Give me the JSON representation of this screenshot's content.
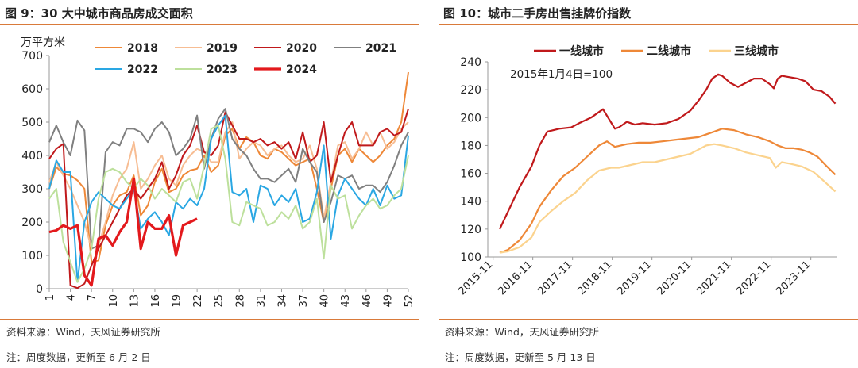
{
  "left_panel": {
    "title": "图 9：30 大中城市商品房成交面积",
    "source": "资料来源：Wind，天风证券研究所",
    "note": "注：周度数据，更新至 6 月 2 日"
  },
  "right_panel": {
    "title": "图 10：城市二手房出售挂牌价指数",
    "source": "资料来源：Wind，天风证券研究所",
    "note": "注：周度数据，更新至 5 月 13 日"
  },
  "chart_data": [
    {
      "type": "line",
      "ylabel": "万平方米",
      "ylim": [
        0,
        700
      ],
      "yticks": [
        0,
        100,
        200,
        300,
        400,
        500,
        600,
        700
      ],
      "xlim": [
        1,
        52
      ],
      "xticks": [
        1,
        4,
        7,
        10,
        13,
        16,
        19,
        22,
        25,
        28,
        31,
        34,
        37,
        40,
        43,
        46,
        49,
        52
      ],
      "legend_position": "top",
      "series": [
        {
          "name": "2018",
          "color": "#ee8838",
          "width": 2,
          "x": [
            1,
            2,
            3,
            4,
            5,
            6,
            7,
            8,
            9,
            10,
            11,
            12,
            13,
            14,
            15,
            16,
            17,
            18,
            19,
            20,
            21,
            22,
            23,
            24,
            25,
            26,
            27,
            28,
            29,
            30,
            31,
            32,
            33,
            34,
            35,
            36,
            37,
            38,
            39,
            40,
            41,
            42,
            43,
            44,
            45,
            46,
            47,
            48,
            49,
            50,
            51,
            52
          ],
          "values": [
            300,
            365,
            345,
            340,
            325,
            300,
            80,
            85,
            190,
            250,
            280,
            290,
            340,
            220,
            250,
            320,
            360,
            290,
            300,
            340,
            355,
            360,
            400,
            350,
            370,
            460,
            480,
            420,
            455,
            440,
            400,
            390,
            420,
            410,
            390,
            370,
            380,
            390,
            300,
            200,
            300,
            400,
            420,
            380,
            420,
            400,
            380,
            400,
            430,
            450,
            500,
            650
          ]
        },
        {
          "name": "2019",
          "color": "#f7bd93",
          "width": 2,
          "x": [
            1,
            2,
            3,
            4,
            5,
            6,
            7,
            8,
            9,
            10,
            11,
            12,
            13,
            14,
            15,
            16,
            17,
            18,
            19,
            20,
            21,
            22,
            23,
            24,
            25,
            26,
            27,
            28,
            29,
            30,
            31,
            32,
            33,
            34,
            35,
            36,
            37,
            38,
            39,
            40,
            41,
            42,
            43,
            44,
            45,
            46,
            47,
            48,
            49,
            50,
            51,
            52
          ],
          "values": [
            320,
            380,
            340,
            300,
            250,
            200,
            120,
            130,
            200,
            280,
            330,
            360,
            440,
            300,
            330,
            370,
            400,
            330,
            310,
            370,
            400,
            420,
            410,
            380,
            380,
            470,
            500,
            390,
            420,
            440,
            430,
            400,
            420,
            430,
            400,
            380,
            390,
            430,
            360,
            210,
            320,
            430,
            440,
            390,
            420,
            470,
            430,
            470,
            420,
            440,
            480,
            500
          ]
        },
        {
          "name": "2020",
          "color": "#c0191b",
          "width": 2,
          "x": [
            1,
            2,
            3,
            4,
            5,
            6,
            7,
            8,
            9,
            10,
            11,
            12,
            13,
            14,
            15,
            16,
            17,
            18,
            19,
            20,
            21,
            22,
            23,
            24,
            25,
            26,
            27,
            28,
            29,
            30,
            31,
            32,
            33,
            34,
            35,
            36,
            37,
            38,
            39,
            40,
            41,
            42,
            43,
            44,
            45,
            46,
            47,
            48,
            49,
            50,
            51,
            52
          ],
          "values": [
            390,
            420,
            435,
            10,
            2,
            15,
            70,
            120,
            160,
            200,
            240,
            280,
            300,
            270,
            300,
            330,
            380,
            300,
            340,
            400,
            430,
            490,
            410,
            400,
            430,
            530,
            490,
            450,
            450,
            440,
            450,
            430,
            440,
            420,
            440,
            390,
            470,
            380,
            400,
            500,
            320,
            400,
            470,
            500,
            430,
            430,
            430,
            470,
            480,
            460,
            470,
            540
          ]
        },
        {
          "name": "2021",
          "color": "#808080",
          "width": 2,
          "x": [
            1,
            2,
            3,
            4,
            5,
            6,
            7,
            8,
            9,
            10,
            11,
            12,
            13,
            14,
            15,
            16,
            17,
            18,
            19,
            20,
            21,
            22,
            23,
            24,
            25,
            26,
            27,
            28,
            29,
            30,
            31,
            32,
            33,
            34,
            35,
            36,
            37,
            38,
            39,
            40,
            41,
            42,
            43,
            44,
            45,
            46,
            47,
            48,
            49,
            50,
            51,
            52
          ],
          "values": [
            440,
            490,
            440,
            400,
            505,
            475,
            120,
            130,
            410,
            440,
            430,
            480,
            480,
            470,
            440,
            480,
            500,
            470,
            400,
            420,
            450,
            520,
            360,
            450,
            510,
            540,
            450,
            420,
            400,
            360,
            330,
            330,
            320,
            340,
            360,
            320,
            420,
            380,
            350,
            200,
            260,
            340,
            330,
            340,
            300,
            310,
            310,
            290,
            320,
            370,
            430,
            470
          ]
        },
        {
          "name": "2022",
          "color": "#2aa7e3",
          "width": 2,
          "x": [
            1,
            2,
            3,
            4,
            5,
            6,
            7,
            8,
            9,
            10,
            11,
            12,
            13,
            14,
            15,
            16,
            17,
            18,
            19,
            20,
            21,
            22,
            23,
            24,
            25,
            26,
            27,
            28,
            29,
            30,
            31,
            32,
            33,
            34,
            35,
            36,
            37,
            38,
            39,
            40,
            41,
            42,
            43,
            44,
            45,
            46,
            47,
            48,
            49,
            50,
            51,
            52
          ],
          "values": [
            300,
            385,
            350,
            350,
            20,
            200,
            260,
            290,
            270,
            250,
            240,
            270,
            300,
            180,
            210,
            230,
            200,
            160,
            260,
            240,
            270,
            250,
            300,
            450,
            490,
            520,
            290,
            280,
            300,
            200,
            310,
            300,
            250,
            280,
            260,
            300,
            200,
            210,
            290,
            430,
            150,
            280,
            330,
            300,
            270,
            250,
            300,
            250,
            310,
            270,
            280,
            460
          ]
        },
        {
          "name": "2023",
          "color": "#bde09c",
          "width": 2,
          "x": [
            1,
            2,
            3,
            4,
            5,
            6,
            7,
            8,
            9,
            10,
            11,
            12,
            13,
            14,
            15,
            16,
            17,
            18,
            19,
            20,
            21,
            22,
            23,
            24,
            25,
            26,
            27,
            28,
            29,
            30,
            31,
            32,
            33,
            34,
            35,
            36,
            37,
            38,
            39,
            40,
            41,
            42,
            43,
            44,
            45,
            46,
            47,
            48,
            49,
            50,
            51,
            52
          ],
          "values": [
            270,
            300,
            140,
            80,
            20,
            60,
            120,
            270,
            350,
            360,
            350,
            320,
            300,
            330,
            310,
            270,
            300,
            280,
            260,
            320,
            330,
            270,
            370,
            480,
            490,
            390,
            200,
            190,
            260,
            250,
            240,
            190,
            200,
            230,
            210,
            250,
            180,
            200,
            270,
            90,
            310,
            270,
            280,
            180,
            220,
            250,
            270,
            240,
            250,
            280,
            300,
            400
          ]
        },
        {
          "name": "2024",
          "color": "#e3191c",
          "width": 3.2,
          "x": [
            1,
            2,
            3,
            4,
            5,
            6,
            7,
            8,
            9,
            10,
            11,
            12,
            13,
            14,
            15,
            16,
            17,
            18,
            19,
            20,
            21,
            22
          ],
          "values": [
            170,
            175,
            190,
            180,
            190,
            40,
            10,
            150,
            160,
            130,
            170,
            200,
            330,
            120,
            200,
            180,
            180,
            220,
            100,
            190,
            200,
            210
          ]
        }
      ]
    },
    {
      "type": "line",
      "ylim": [
        100,
        240
      ],
      "yticks": [
        100,
        120,
        140,
        160,
        180,
        200,
        220,
        240
      ],
      "xticks": [
        "2015-11",
        "2016-11",
        "2017-11",
        "2018-11",
        "2019-11",
        "2020-11",
        "2021-11",
        "2022-11",
        "2023-11"
      ],
      "annotation": "2015年1月4日=100",
      "legend_position": "top",
      "series": [
        {
          "name": "一线城市",
          "color": "#c0191b",
          "width": 2.2,
          "x": [
            2016.0,
            2016.1,
            2016.3,
            2016.5,
            2016.8,
            2017.0,
            2017.2,
            2017.5,
            2017.8,
            2018.0,
            2018.3,
            2018.6,
            2018.9,
            2019.0,
            2019.2,
            2019.4,
            2019.6,
            2019.9,
            2020.2,
            2020.5,
            2020.8,
            2021.0,
            2021.2,
            2021.35,
            2021.5,
            2021.6,
            2021.8,
            2022.0,
            2022.2,
            2022.4,
            2022.6,
            2022.8,
            2022.9,
            2023.0,
            2023.1,
            2023.3,
            2023.5,
            2023.7,
            2023.9,
            2024.1,
            2024.3,
            2024.45
          ],
          "values": [
            120,
            126,
            138,
            150,
            165,
            180,
            190,
            192,
            193,
            196,
            200,
            206,
            192,
            193,
            197,
            195,
            196,
            195,
            196,
            199,
            205,
            212,
            220,
            228,
            231,
            230,
            225,
            222,
            225,
            228,
            228,
            224,
            221,
            228,
            230,
            229,
            228,
            226,
            220,
            219,
            215,
            210
          ]
        },
        {
          "name": "二线城市",
          "color": "#ee8838",
          "width": 2.2,
          "x": [
            2016.0,
            2016.2,
            2016.5,
            2016.8,
            2017.0,
            2017.3,
            2017.6,
            2017.9,
            2018.2,
            2018.5,
            2018.7,
            2018.9,
            2019.2,
            2019.5,
            2019.8,
            2020.1,
            2020.4,
            2020.7,
            2021.0,
            2021.2,
            2021.4,
            2021.6,
            2021.9,
            2022.2,
            2022.5,
            2022.8,
            2023.0,
            2023.2,
            2023.4,
            2023.6,
            2023.8,
            2024.0,
            2024.2,
            2024.45
          ],
          "values": [
            103,
            105,
            112,
            124,
            136,
            148,
            158,
            164,
            172,
            180,
            183,
            179,
            181,
            182,
            182,
            183,
            184,
            185,
            186,
            188,
            190,
            192,
            191,
            188,
            186,
            183,
            180,
            178,
            178,
            177,
            175,
            172,
            166,
            159
          ]
        },
        {
          "name": "三线城市",
          "color": "#fbd38e",
          "width": 2.2,
          "x": [
            2016.0,
            2016.2,
            2016.5,
            2016.8,
            2017.0,
            2017.3,
            2017.6,
            2017.9,
            2018.2,
            2018.5,
            2018.8,
            2019.0,
            2019.3,
            2019.6,
            2019.9,
            2020.2,
            2020.5,
            2020.8,
            2021.0,
            2021.2,
            2021.4,
            2021.6,
            2021.9,
            2022.2,
            2022.5,
            2022.8,
            2022.95,
            2023.1,
            2023.3,
            2023.6,
            2023.9,
            2024.1,
            2024.45
          ],
          "values": [
            103,
            104,
            107,
            114,
            125,
            133,
            140,
            146,
            155,
            162,
            164,
            164,
            166,
            168,
            168,
            170,
            172,
            174,
            177,
            180,
            181,
            180,
            178,
            175,
            173,
            171,
            164,
            168,
            167,
            165,
            161,
            156,
            147
          ]
        }
      ]
    }
  ]
}
